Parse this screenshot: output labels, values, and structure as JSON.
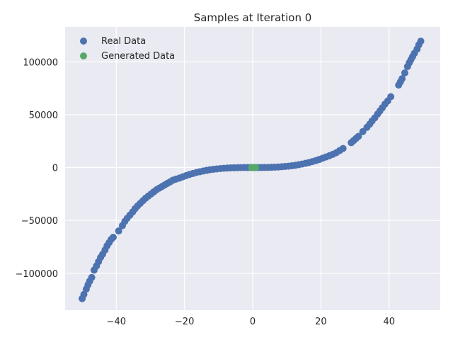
{
  "chart_data": {
    "type": "scatter",
    "title": "Samples at Iteration 0",
    "xlabel": "",
    "ylabel": "",
    "xlim": [
      -55,
      55
    ],
    "ylim": [
      -135000,
      133000
    ],
    "xticks": [
      -40,
      -20,
      0,
      20,
      40
    ],
    "xtick_labels": [
      "−40",
      "−20",
      "0",
      "20",
      "40"
    ],
    "yticks": [
      -100000,
      -50000,
      0,
      50000,
      100000
    ],
    "ytick_labels": [
      "−100000",
      "−50000",
      "0",
      "50000",
      "100000"
    ],
    "grid": true,
    "legend_position": "top-left",
    "series": [
      {
        "name": "Real Data",
        "color": "#4c72b0",
        "points": [
          [
            -50,
            -124000
          ],
          [
            -49.5,
            -120000
          ],
          [
            -48.8,
            -115000
          ],
          [
            -48.3,
            -111000
          ],
          [
            -47.8,
            -107500
          ],
          [
            -47.2,
            -104000
          ],
          [
            -46.5,
            -97000
          ],
          [
            -45.8,
            -93000
          ],
          [
            -45.2,
            -89000
          ],
          [
            -44.6,
            -85000
          ],
          [
            -44,
            -82000
          ],
          [
            -43.3,
            -78000
          ],
          [
            -42.7,
            -74000
          ],
          [
            -42.1,
            -71000
          ],
          [
            -41.5,
            -68000
          ],
          [
            -40.9,
            -66000
          ],
          [
            -39.3,
            -60000
          ],
          [
            -38.2,
            -55000
          ],
          [
            -37.5,
            -51000
          ],
          [
            -36.8,
            -48000
          ],
          [
            -36,
            -45000
          ],
          [
            -35.2,
            -42000
          ],
          [
            -34.5,
            -39000
          ],
          [
            -33.8,
            -36500
          ],
          [
            -33,
            -34000
          ],
          [
            -32.2,
            -31500
          ],
          [
            -31.4,
            -29000
          ],
          [
            -30.6,
            -27000
          ],
          [
            -29.8,
            -25000
          ],
          [
            -29,
            -23000
          ],
          [
            -28.2,
            -21000
          ],
          [
            -27.4,
            -19500
          ],
          [
            -26.6,
            -18000
          ],
          [
            -25.8,
            -16500
          ],
          [
            -25,
            -15000
          ],
          [
            -24.2,
            -13500
          ],
          [
            -23.4,
            -12000
          ],
          [
            -22.5,
            -11000
          ],
          [
            -21.5,
            -10000
          ],
          [
            -20.5,
            -8800
          ],
          [
            -19.5,
            -7600
          ],
          [
            -18.5,
            -6500
          ],
          [
            -17.5,
            -5600
          ],
          [
            -16.5,
            -4700
          ],
          [
            -15.5,
            -4000
          ],
          [
            -14.5,
            -3300
          ],
          [
            -13.5,
            -2700
          ],
          [
            -12.5,
            -2100
          ],
          [
            -11.5,
            -1700
          ],
          [
            -10.5,
            -1300
          ],
          [
            -9.5,
            -1000
          ],
          [
            -8.5,
            -750
          ],
          [
            -7.5,
            -500
          ],
          [
            -6.5,
            -350
          ],
          [
            -5.5,
            -220
          ],
          [
            -4.5,
            -130
          ],
          [
            -3.5,
            -70
          ],
          [
            -2.5,
            -30
          ],
          [
            -1.5,
            -10
          ],
          [
            -0.5,
            0
          ],
          [
            0.5,
            0
          ],
          [
            1.5,
            10
          ],
          [
            2.5,
            30
          ],
          [
            3.5,
            70
          ],
          [
            4.5,
            130
          ],
          [
            5.5,
            220
          ],
          [
            6.5,
            350
          ],
          [
            7.5,
            500
          ],
          [
            8.5,
            750
          ],
          [
            9.5,
            1000
          ],
          [
            10.5,
            1300
          ],
          [
            11.5,
            1700
          ],
          [
            12.5,
            2100
          ],
          [
            13.5,
            2700
          ],
          [
            14.5,
            3300
          ],
          [
            15.5,
            4000
          ],
          [
            16.5,
            4700
          ],
          [
            17.5,
            5600
          ],
          [
            18.5,
            6500
          ],
          [
            19.5,
            7600
          ],
          [
            20.5,
            8800
          ],
          [
            21.5,
            10000
          ],
          [
            22.5,
            11200
          ],
          [
            23.5,
            12500
          ],
          [
            24.5,
            14000
          ],
          [
            25.5,
            16000
          ],
          [
            26.5,
            18000
          ],
          [
            28.9,
            23500
          ],
          [
            29.6,
            25500
          ],
          [
            30.3,
            27500
          ],
          [
            31,
            29500
          ],
          [
            32.3,
            34000
          ],
          [
            33.5,
            38000
          ],
          [
            34.3,
            41000
          ],
          [
            35,
            44000
          ],
          [
            35.8,
            47000
          ],
          [
            36.6,
            50500
          ],
          [
            37.3,
            53500
          ],
          [
            38,
            56500
          ],
          [
            38.8,
            60000
          ],
          [
            39.6,
            63000
          ],
          [
            40.5,
            67000
          ],
          [
            42.8,
            78000
          ],
          [
            43.3,
            81000
          ],
          [
            43.8,
            84000
          ],
          [
            44.6,
            89500
          ],
          [
            45.4,
            95500
          ],
          [
            45.9,
            99000
          ],
          [
            46.4,
            102000
          ],
          [
            46.9,
            105000
          ],
          [
            47.4,
            108000
          ],
          [
            48.2,
            112000
          ],
          [
            48.7,
            116000
          ],
          [
            49.3,
            119500
          ]
        ]
      },
      {
        "name": "Generated Data",
        "color": "#55a868",
        "points": [
          [
            -0.3,
            0
          ],
          [
            0,
            0
          ],
          [
            0.3,
            0
          ],
          [
            0.6,
            0
          ],
          [
            0.9,
            0
          ]
        ]
      }
    ]
  }
}
